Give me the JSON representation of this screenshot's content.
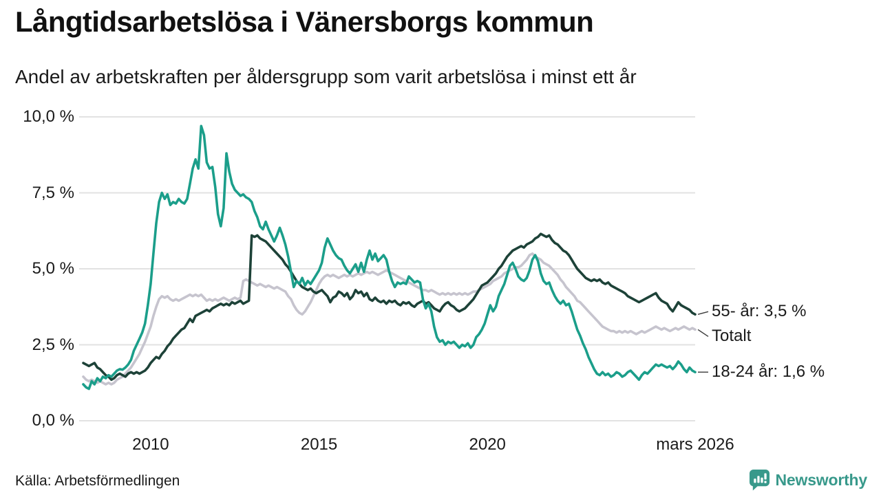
{
  "title": "Långtidsarbetslösa i Vänersborgs kommun",
  "subtitle": "Andel av arbetskraften per åldersgrupp som varit arbetslösa i minst ett år",
  "source": "Källa: Arbetsförmedlingen",
  "branding": {
    "name": "Newsworthy",
    "color": "#38998b",
    "icon": "newsworthy-speech-bubble-bar-chart"
  },
  "colors": {
    "grid": "#e2e2e2",
    "text": "#1a1a1a",
    "leader": "#3c3c3c",
    "series_18_24": "#1b9e8a",
    "series_55": "#1d4238",
    "series_total": "#c6c4ce"
  },
  "chart_data": {
    "type": "line",
    "title": "Långtidsarbetslösa i Vänersborgs kommun",
    "subtitle": "Andel av arbetskraften per åldersgrupp som varit arbetslösa i minst ett år",
    "unit": "%",
    "grid": "horizontal",
    "xlim": [
      2008.0,
      2026.1667
    ],
    "ylim": [
      0,
      10
    ],
    "x_start_year": 2008.0,
    "x_step_months": 1,
    "x_ticks": [
      {
        "value": 2010.0,
        "label": "2010"
      },
      {
        "value": 2015.0,
        "label": "2015"
      },
      {
        "value": 2020.0,
        "label": "2020"
      },
      {
        "value": 2026.1667,
        "label": "mars 2026"
      }
    ],
    "y_ticks": [
      {
        "value": 0,
        "label": "0,0 %"
      },
      {
        "value": 2.5,
        "label": "2,5 %"
      },
      {
        "value": 5,
        "label": "5,0 %"
      },
      {
        "value": 7.5,
        "label": "7,5 %"
      },
      {
        "value": 10,
        "label": "10,0 %"
      }
    ],
    "legend_position": "right-end-labels",
    "series": [
      {
        "name": "Totalt",
        "end_label": "Totalt",
        "last_value": 3.0,
        "color": "#c6c4ce",
        "values": [
          1.45,
          1.35,
          1.3,
          1.35,
          1.3,
          1.25,
          1.3,
          1.25,
          1.2,
          1.25,
          1.2,
          1.25,
          1.35,
          1.4,
          1.45,
          1.55,
          1.65,
          1.75,
          1.9,
          2.05,
          2.2,
          2.4,
          2.6,
          2.85,
          3.1,
          3.45,
          3.75,
          4.0,
          4.1,
          4.05,
          4.1,
          4.0,
          3.95,
          4.0,
          3.95,
          4.0,
          4.05,
          4.1,
          4.15,
          4.1,
          4.15,
          4.1,
          4.15,
          4.05,
          3.95,
          4.0,
          3.95,
          4.0,
          3.95,
          4.0,
          4.05,
          4.0,
          3.95,
          4.0,
          4.05,
          4.0,
          4.05,
          4.6,
          4.65,
          4.6,
          4.55,
          4.5,
          4.45,
          4.5,
          4.45,
          4.4,
          4.45,
          4.4,
          4.35,
          4.4,
          4.35,
          4.3,
          4.25,
          4.1,
          4.0,
          3.8,
          3.65,
          3.55,
          3.5,
          3.6,
          3.75,
          3.9,
          4.1,
          4.3,
          4.5,
          4.65,
          4.75,
          4.8,
          4.75,
          4.8,
          4.75,
          4.7,
          4.75,
          4.8,
          4.75,
          4.8,
          4.75,
          4.8,
          4.85,
          4.8,
          4.85,
          4.9,
          4.85,
          4.9,
          4.85,
          4.8,
          4.85,
          4.9,
          4.95,
          4.9,
          4.85,
          4.8,
          4.75,
          4.7,
          4.65,
          4.6,
          4.55,
          4.5,
          4.45,
          4.4,
          4.35,
          4.3,
          4.3,
          4.25,
          4.3,
          4.25,
          4.2,
          4.15,
          4.2,
          4.15,
          4.2,
          4.15,
          4.2,
          4.15,
          4.2,
          4.15,
          4.2,
          4.15,
          4.2,
          4.25,
          4.25,
          4.3,
          4.35,
          4.4,
          4.45,
          4.5,
          4.6,
          4.65,
          4.7,
          4.75,
          4.85,
          4.9,
          4.95,
          5.0,
          5.05,
          5.05,
          5.1,
          5.2,
          5.3,
          5.45,
          5.5,
          5.4,
          5.35,
          5.3,
          5.2,
          5.15,
          5.1,
          5.0,
          4.9,
          4.8,
          4.65,
          4.55,
          4.4,
          4.3,
          4.2,
          4.1,
          3.95,
          3.9,
          3.8,
          3.7,
          3.6,
          3.5,
          3.4,
          3.3,
          3.2,
          3.1,
          3.05,
          3.0,
          2.95,
          2.95,
          2.9,
          2.95,
          2.9,
          2.95,
          2.9,
          2.95,
          2.9,
          2.85,
          2.9,
          2.95,
          2.9,
          2.95,
          3.0,
          3.05,
          3.1,
          3.05,
          3.0,
          3.05,
          3.0,
          2.95,
          3.0,
          3.05,
          3.0,
          3.05,
          3.1,
          3.05,
          3.0,
          3.05,
          3.0
        ]
      },
      {
        "name": "55- år",
        "end_label": "55- år: 3,5 %",
        "last_value": 3.5,
        "color": "#1d4238",
        "values": [
          1.9,
          1.85,
          1.8,
          1.85,
          1.9,
          1.75,
          1.7,
          1.6,
          1.5,
          1.45,
          1.35,
          1.4,
          1.5,
          1.55,
          1.5,
          1.45,
          1.55,
          1.6,
          1.55,
          1.6,
          1.55,
          1.6,
          1.65,
          1.75,
          1.9,
          2.0,
          2.1,
          2.05,
          2.2,
          2.3,
          2.45,
          2.55,
          2.7,
          2.8,
          2.9,
          3.0,
          3.05,
          3.2,
          3.35,
          3.25,
          3.45,
          3.5,
          3.55,
          3.6,
          3.65,
          3.6,
          3.7,
          3.75,
          3.8,
          3.85,
          3.8,
          3.85,
          3.8,
          3.9,
          3.85,
          3.9,
          3.95,
          3.85,
          3.9,
          3.95,
          6.1,
          6.05,
          6.1,
          6.0,
          5.95,
          5.9,
          5.8,
          5.7,
          5.6,
          5.5,
          5.4,
          5.3,
          5.15,
          5.05,
          4.9,
          4.75,
          4.6,
          4.5,
          4.4,
          4.35,
          4.3,
          4.35,
          4.25,
          4.2,
          4.25,
          4.3,
          4.2,
          4.1,
          3.9,
          4.05,
          4.1,
          4.25,
          4.2,
          4.1,
          4.2,
          4.0,
          4.1,
          4.3,
          4.2,
          4.25,
          4.1,
          4.2,
          4.0,
          3.95,
          4.05,
          3.95,
          3.9,
          3.95,
          3.85,
          3.95,
          3.9,
          3.95,
          3.85,
          3.8,
          3.9,
          3.85,
          3.9,
          3.8,
          3.75,
          3.85,
          3.9,
          3.95,
          3.85,
          3.9,
          3.8,
          3.7,
          3.65,
          3.6,
          3.75,
          3.85,
          3.9,
          3.8,
          3.75,
          3.65,
          3.6,
          3.65,
          3.7,
          3.8,
          3.9,
          4.0,
          4.15,
          4.3,
          4.45,
          4.5,
          4.55,
          4.65,
          4.75,
          4.85,
          5.0,
          5.1,
          5.25,
          5.4,
          5.5,
          5.6,
          5.65,
          5.7,
          5.75,
          5.7,
          5.8,
          5.85,
          5.9,
          6.0,
          6.05,
          6.15,
          6.1,
          6.05,
          6.1,
          5.95,
          5.85,
          5.8,
          5.7,
          5.6,
          5.55,
          5.45,
          5.3,
          5.15,
          5.0,
          4.9,
          4.8,
          4.7,
          4.65,
          4.6,
          4.65,
          4.6,
          4.65,
          4.55,
          4.5,
          4.55,
          4.45,
          4.4,
          4.35,
          4.3,
          4.25,
          4.2,
          4.1,
          4.05,
          4.0,
          3.95,
          3.9,
          3.95,
          4.0,
          4.05,
          4.1,
          4.15,
          4.2,
          4.05,
          3.95,
          3.9,
          3.85,
          3.7,
          3.6,
          3.75,
          3.9,
          3.8,
          3.75,
          3.7,
          3.65,
          3.55,
          3.5
        ]
      },
      {
        "name": "18-24 år",
        "end_label": "18-24 år: 1,6 %",
        "last_value": 1.6,
        "color": "#1b9e8a",
        "values": [
          1.2,
          1.1,
          1.05,
          1.3,
          1.2,
          1.4,
          1.3,
          1.45,
          1.4,
          1.5,
          1.45,
          1.55,
          1.65,
          1.7,
          1.68,
          1.75,
          1.85,
          2.0,
          2.3,
          2.5,
          2.7,
          2.9,
          3.2,
          3.8,
          4.5,
          5.5,
          6.5,
          7.2,
          7.5,
          7.3,
          7.45,
          7.1,
          7.2,
          7.15,
          7.3,
          7.2,
          7.15,
          7.3,
          7.8,
          8.3,
          8.6,
          8.3,
          9.7,
          9.4,
          8.5,
          8.3,
          8.35,
          7.7,
          6.8,
          6.4,
          7.0,
          8.8,
          8.2,
          7.8,
          7.6,
          7.5,
          7.4,
          7.45,
          7.35,
          7.3,
          7.2,
          6.9,
          6.7,
          6.4,
          6.3,
          6.55,
          6.3,
          6.1,
          5.9,
          6.1,
          6.35,
          6.1,
          5.8,
          5.4,
          4.9,
          4.4,
          4.6,
          4.5,
          4.7,
          4.45,
          4.6,
          4.5,
          4.65,
          4.8,
          4.95,
          5.2,
          5.7,
          6.0,
          5.8,
          5.6,
          5.45,
          5.35,
          5.3,
          5.1,
          4.95,
          4.85,
          5.0,
          5.15,
          4.9,
          5.2,
          4.9,
          5.3,
          5.6,
          5.3,
          5.5,
          5.25,
          5.35,
          5.45,
          5.3,
          4.9,
          4.6,
          4.4,
          4.55,
          4.5,
          4.55,
          4.5,
          4.75,
          4.65,
          4.55,
          4.6,
          4.55,
          4.0,
          3.7,
          3.85,
          3.6,
          3.1,
          2.75,
          2.6,
          2.65,
          2.5,
          2.6,
          2.55,
          2.6,
          2.5,
          2.4,
          2.5,
          2.45,
          2.55,
          2.4,
          2.5,
          2.75,
          2.85,
          3.0,
          3.2,
          3.5,
          3.8,
          3.6,
          3.75,
          4.1,
          4.3,
          4.5,
          4.8,
          5.1,
          5.2,
          5.0,
          4.75,
          4.65,
          4.6,
          4.7,
          4.95,
          5.3,
          5.45,
          5.25,
          4.85,
          4.6,
          4.5,
          4.55,
          4.3,
          4.1,
          3.95,
          3.85,
          3.95,
          3.8,
          3.85,
          3.6,
          3.3,
          3.0,
          2.8,
          2.55,
          2.35,
          2.1,
          1.9,
          1.7,
          1.55,
          1.5,
          1.6,
          1.5,
          1.55,
          1.45,
          1.5,
          1.6,
          1.55,
          1.45,
          1.5,
          1.6,
          1.65,
          1.55,
          1.45,
          1.35,
          1.5,
          1.6,
          1.55,
          1.65,
          1.75,
          1.85,
          1.8,
          1.85,
          1.8,
          1.75,
          1.8,
          1.7,
          1.8,
          1.95,
          1.85,
          1.7,
          1.6,
          1.75,
          1.65,
          1.6
        ]
      }
    ]
  }
}
